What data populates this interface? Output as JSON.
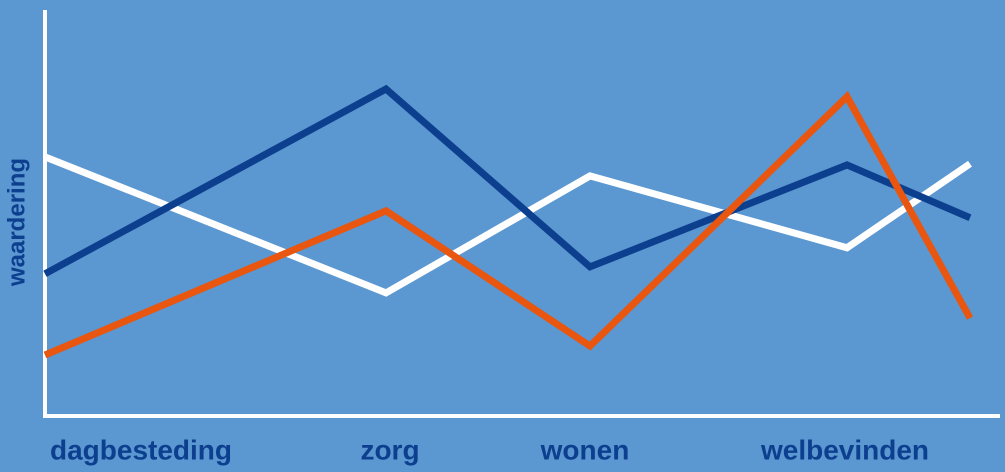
{
  "chart_data": {
    "type": "line",
    "y_label": "waardering",
    "categories": [
      "dagbesteding",
      "zorg",
      "wonen",
      "welbevinden",
      null
    ],
    "series": [
      {
        "color": "#ffffff",
        "values": [
          63.8,
          30.3,
          59.1,
          41.4,
          62.1
        ]
      },
      {
        "color": "#0d3f8f",
        "values": [
          35.0,
          80.5,
          36.7,
          61.8,
          48.8
        ]
      },
      {
        "color": "#e8560f",
        "values": [
          15.0,
          50.5,
          17.2,
          78.6,
          24.1
        ]
      }
    ]
  }
}
